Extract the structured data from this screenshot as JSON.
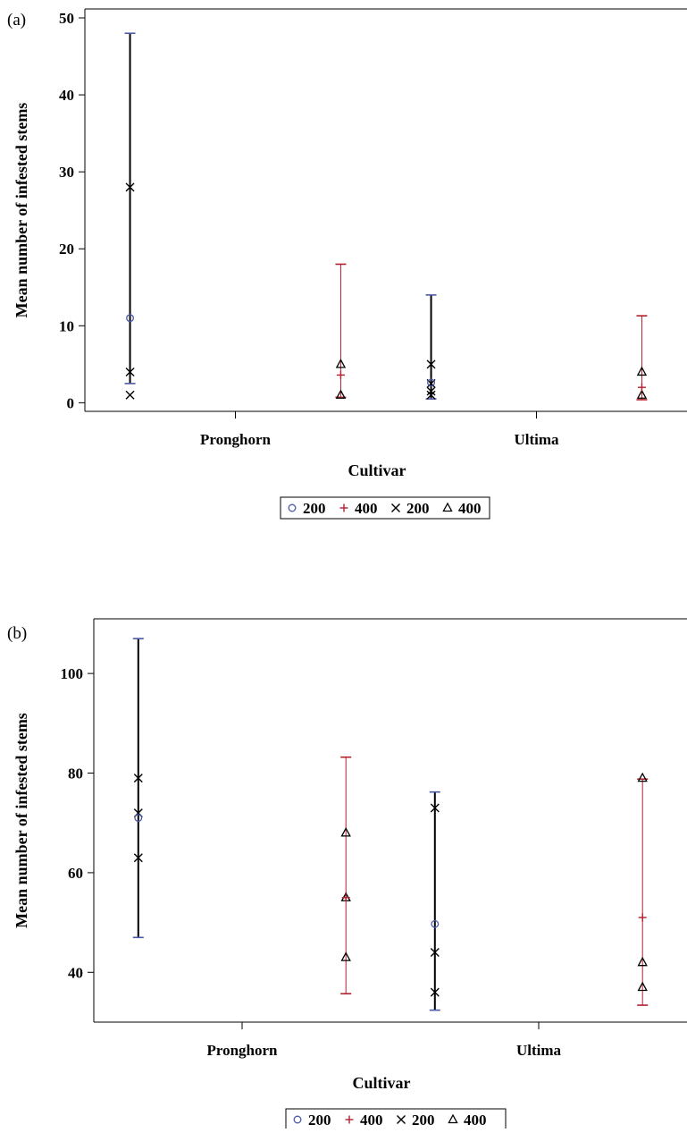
{
  "colors": {
    "blue": "#4a5aa8",
    "red": "#b21f2d",
    "black": "#000000",
    "background": "#ffffff"
  },
  "chart_data": [
    {
      "type": "scatter",
      "panel_label": "(a)",
      "xlabel": "Cultivar",
      "ylabel": "Mean number of infested stems",
      "categories": [
        "Pronghorn",
        "Ultima"
      ],
      "ylim": [
        -1,
        50
      ],
      "yticks": [
        0,
        10,
        20,
        30,
        40,
        50
      ],
      "grid": false,
      "legend_position": "bottom",
      "legend": [
        {
          "label": "200",
          "marker": "circle",
          "color": "#4a5aa8"
        },
        {
          "label": "400",
          "marker": "plus",
          "color": "#b21f2d"
        },
        {
          "label": "200",
          "marker": "x",
          "color": "#000000"
        },
        {
          "label": "400",
          "marker": "triangle",
          "color": "#000000"
        }
      ],
      "groups": [
        {
          "category": "Pronghorn",
          "offset": -0.35,
          "mean_marker": "circle",
          "mean_color": "#4a5aa8",
          "mean": 11,
          "lower": 2.5,
          "upper": 48,
          "bar_color": "#000000",
          "cap_color": "#4a5aa8",
          "bar_width": 2,
          "point_marker": "x",
          "points": [
            1,
            4,
            28
          ]
        },
        {
          "category": "Pronghorn",
          "offset": 0.35,
          "mean_marker": "plus",
          "mean_color": "#b21f2d",
          "mean": 3.6,
          "lower": 0.7,
          "upper": 18,
          "bar_color": "#b21f2d",
          "cap_color": "#b21f2d",
          "bar_width": 1,
          "point_marker": "triangle",
          "points": [
            1,
            5
          ]
        },
        {
          "category": "Ultima",
          "offset": -0.35,
          "mean_marker": "circle",
          "mean_color": "#4a5aa8",
          "mean": 2.6,
          "lower": 0.5,
          "upper": 14,
          "bar_color": "#000000",
          "cap_color": "#4a5aa8",
          "bar_width": 2,
          "point_marker": "x",
          "points": [
            1,
            1.5,
            2.5,
            5
          ]
        },
        {
          "category": "Ultima",
          "offset": 0.35,
          "mean_marker": "plus",
          "mean_color": "#b21f2d",
          "mean": 2,
          "lower": 0.4,
          "upper": 11.3,
          "bar_color": "#b21f2d",
          "cap_color": "#b21f2d",
          "bar_width": 1,
          "point_marker": "triangle",
          "points": [
            1,
            4
          ]
        }
      ]
    },
    {
      "type": "scatter",
      "panel_label": "(b)",
      "xlabel": "Cultivar",
      "ylabel": "Mean number of infested stems",
      "categories": [
        "Pronghorn",
        "Ultima"
      ],
      "ylim": [
        30,
        109
      ],
      "yticks": [
        40,
        60,
        80,
        100
      ],
      "grid": false,
      "legend_position": "bottom",
      "legend": [
        {
          "label": "200",
          "marker": "circle",
          "color": "#4a5aa8"
        },
        {
          "label": "400",
          "marker": "plus",
          "color": "#b21f2d"
        },
        {
          "label": "200",
          "marker": "x",
          "color": "#000000"
        },
        {
          "label": "400",
          "marker": "triangle",
          "color": "#000000"
        }
      ],
      "groups": [
        {
          "category": "Pronghorn",
          "offset": -0.35,
          "mean_marker": "circle",
          "mean_color": "#4a5aa8",
          "mean": 71,
          "lower": 47,
          "upper": 107,
          "bar_color": "#000000",
          "cap_color": "#4a5aa8",
          "bar_width": 2,
          "point_marker": "x",
          "points": [
            63,
            72,
            79
          ]
        },
        {
          "category": "Pronghorn",
          "offset": 0.35,
          "mean_marker": "plus",
          "mean_color": "#b21f2d",
          "mean": 55,
          "lower": 35.7,
          "upper": 83.2,
          "bar_color": "#b21f2d",
          "cap_color": "#b21f2d",
          "bar_width": 1,
          "point_marker": "triangle",
          "points": [
            43,
            55,
            68
          ]
        },
        {
          "category": "Ultima",
          "offset": -0.35,
          "mean_marker": "circle",
          "mean_color": "#4a5aa8",
          "mean": 49.7,
          "lower": 32.4,
          "upper": 76.2,
          "bar_color": "#000000",
          "cap_color": "#4a5aa8",
          "bar_width": 2,
          "point_marker": "x",
          "points": [
            36,
            44,
            73
          ]
        },
        {
          "category": "Ultima",
          "offset": 0.35,
          "mean_marker": "plus",
          "mean_color": "#b21f2d",
          "mean": 51,
          "lower": 33.4,
          "upper": 78.8,
          "bar_color": "#b21f2d",
          "cap_color": "#b21f2d",
          "bar_width": 1,
          "point_marker": "triangle",
          "points": [
            37,
            42,
            79
          ]
        }
      ]
    }
  ]
}
